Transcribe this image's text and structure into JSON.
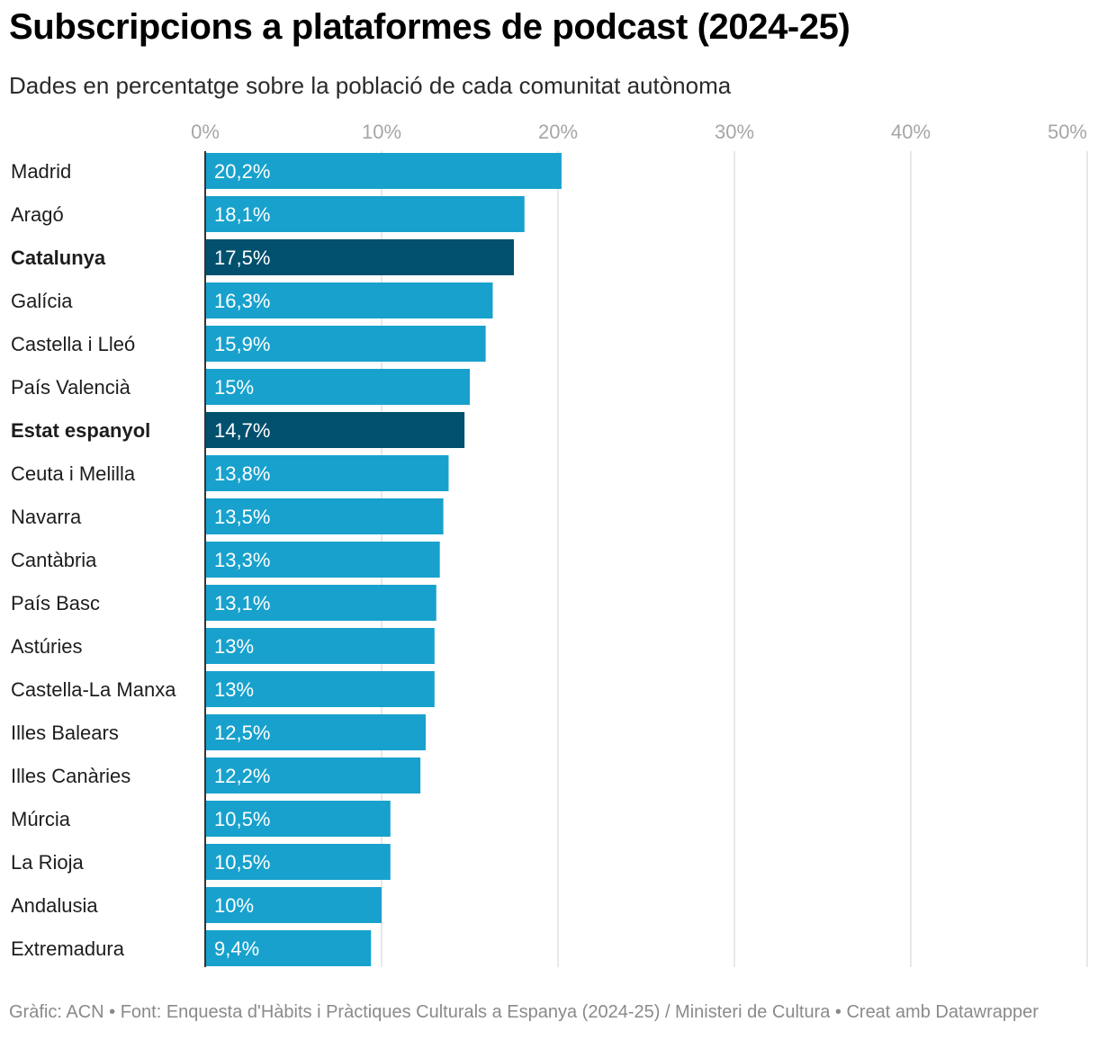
{
  "chart_data": {
    "type": "bar",
    "orientation": "horizontal",
    "title": "Subscripcions a plataformes de podcast (2024-25)",
    "subtitle": "Dades en percentatge sobre la població de cada comunitat autònoma",
    "categories": [
      "Madrid",
      "Aragó",
      "Catalunya",
      "Galícia",
      "Castella i Lleó",
      "País Valencià",
      "Estat espanyol",
      "Ceuta i Melilla",
      "Navarra",
      "Cantàbria",
      "País Basc",
      "Astúries",
      "Castella-La Manxa",
      "Illes Balears",
      "Illes Canàries",
      "Múrcia",
      "La Rioja",
      "Andalusia",
      "Extremadura"
    ],
    "values": [
      20.2,
      18.1,
      17.5,
      16.3,
      15.9,
      15.0,
      14.7,
      13.8,
      13.5,
      13.3,
      13.1,
      13.0,
      13.0,
      12.5,
      12.2,
      10.5,
      10.5,
      10.0,
      9.4
    ],
    "value_labels": [
      "20,2%",
      "18,1%",
      "17,5%",
      "16,3%",
      "15,9%",
      "15%",
      "14,7%",
      "13,8%",
      "13,5%",
      "13,3%",
      "13,1%",
      "13%",
      "13%",
      "12,5%",
      "12,2%",
      "10,5%",
      "10,5%",
      "10%",
      "9,4%"
    ],
    "highlighted": [
      "Catalunya",
      "Estat espanyol"
    ],
    "xlim": [
      0,
      50
    ],
    "xticks": [
      0,
      10,
      20,
      30,
      40,
      50
    ],
    "xtick_labels": [
      "0%",
      "10%",
      "20%",
      "30%",
      "40%",
      "50%"
    ],
    "xtick_position": "top",
    "grid": true,
    "colors": {
      "bar": "#18a1cd",
      "highlight": "#00506e",
      "grid": "#e0e0e0",
      "tick_text": "#a6a6a6",
      "value_text": "#ffffff"
    }
  },
  "footer": {
    "text": "Gràfic: ACN • Font: Enquesta d'Hàbits i Pràctiques Culturals a Espanya (2024-25) / Ministeri de Cultura • Creat amb Datawrapper"
  }
}
